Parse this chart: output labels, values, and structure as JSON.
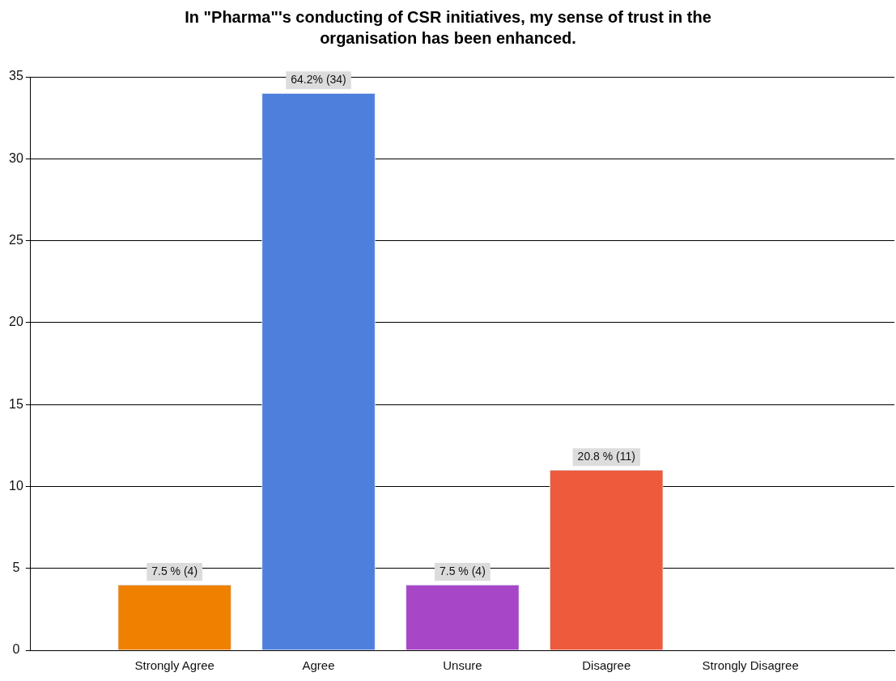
{
  "chart_data": {
    "type": "bar",
    "title": "In \"Pharma\"'s conducting of CSR initiatives, my sense of trust in the organisation has been enhanced.",
    "categories": [
      "Strongly Agree",
      "Agree",
      "Unsure",
      "Disagree",
      "Strongly Disagree"
    ],
    "values": [
      4,
      34,
      4,
      11,
      0
    ],
    "colors": [
      "#f08000",
      "#4f7fdc",
      "#a846c8",
      "#ee5a3c",
      "#888888"
    ],
    "value_labels": [
      "7.5 % (4)",
      "64.2% (34)",
      "7.5 % (4)",
      "20.8 % (11)",
      null
    ],
    "ylim": [
      0,
      35
    ],
    "yticks": [
      0,
      5,
      10,
      15,
      20,
      25,
      30,
      35
    ],
    "grid": "y",
    "legend": false
  }
}
